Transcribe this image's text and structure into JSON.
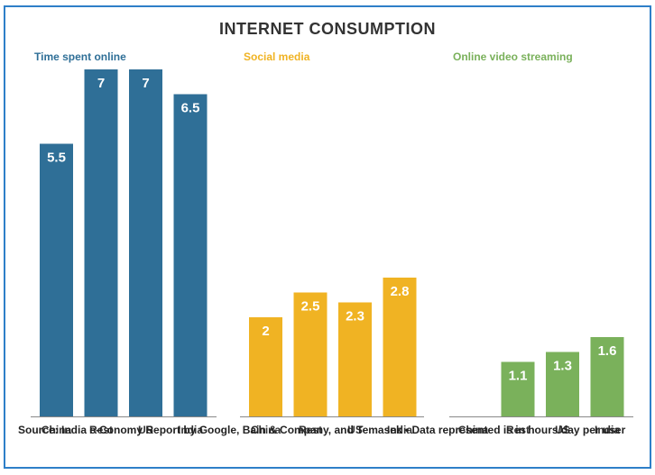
{
  "title": "INTERNET CONSUMPTION",
  "source": "Source: India e-Conomy Report by Google, Bain & Company, and Temasek • Data represented is in hours/day per user",
  "colors": {
    "frame": "#2e7fc8",
    "axis": "#888888"
  },
  "chart_data": [
    {
      "type": "bar",
      "title": "Time spent online",
      "color": "#2f6f97",
      "categories": [
        "China",
        "Rest",
        "US",
        "India"
      ],
      "values": [
        5.5,
        7,
        7,
        6.5
      ],
      "labels": [
        "5.5",
        "7",
        "7",
        "6.5"
      ]
    },
    {
      "type": "bar",
      "title": "Social media",
      "color": "#f0b323",
      "categories": [
        "China",
        "Rest",
        "US",
        "India"
      ],
      "values": [
        2,
        2.5,
        2.3,
        2.8
      ],
      "labels": [
        "2",
        "2.5",
        "2.3",
        "2.8"
      ]
    },
    {
      "type": "bar",
      "title": "Online video streaming",
      "color": "#7ab15b",
      "categories": [
        "China",
        "Rest",
        "US",
        "India"
      ],
      "values": [
        0,
        1.1,
        1.3,
        1.6
      ],
      "labels": [
        "",
        "1.1",
        "1.3",
        "1.6"
      ]
    }
  ]
}
